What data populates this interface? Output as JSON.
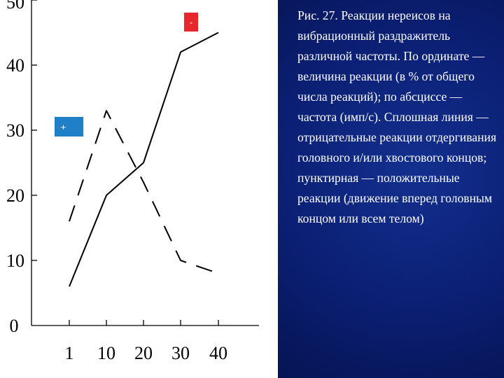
{
  "caption": "Рис. 27. Реакции нереисов на вибрационный раздражитель различной частоты. По ординате — величина реакции (в % от общего числа реакций); по абсциссе — частота (имп/с). Сплошная линия — отрицательные реакции отдергивания головного и/или хвостового концов; пунктирная — положительные реакции (движение вперед головным концом или всем телом)",
  "colors": {
    "caption_background": "#0b1f73",
    "caption_text": "#ffffff",
    "minus_badge": "#e8262d",
    "plus_badge": "#1f7fc8"
  },
  "chart_data": {
    "type": "line",
    "title": "",
    "xlabel": "",
    "ylabel": "",
    "categories": [
      "1",
      "10",
      "20",
      "30",
      "40"
    ],
    "ylim": [
      0,
      50
    ],
    "yticks": [
      "0",
      "10",
      "20",
      "30",
      "40",
      "50"
    ],
    "grid": false,
    "legend": "none",
    "series": [
      {
        "style": "solid",
        "values": [
          6,
          20,
          25,
          42,
          45
        ]
      },
      {
        "style": "dashed",
        "values": [
          16,
          33,
          22,
          10,
          8
        ]
      }
    ],
    "annotations": [
      {
        "text": "-",
        "style": "red-badge"
      },
      {
        "text": "+",
        "style": "blue-badge"
      }
    ]
  }
}
